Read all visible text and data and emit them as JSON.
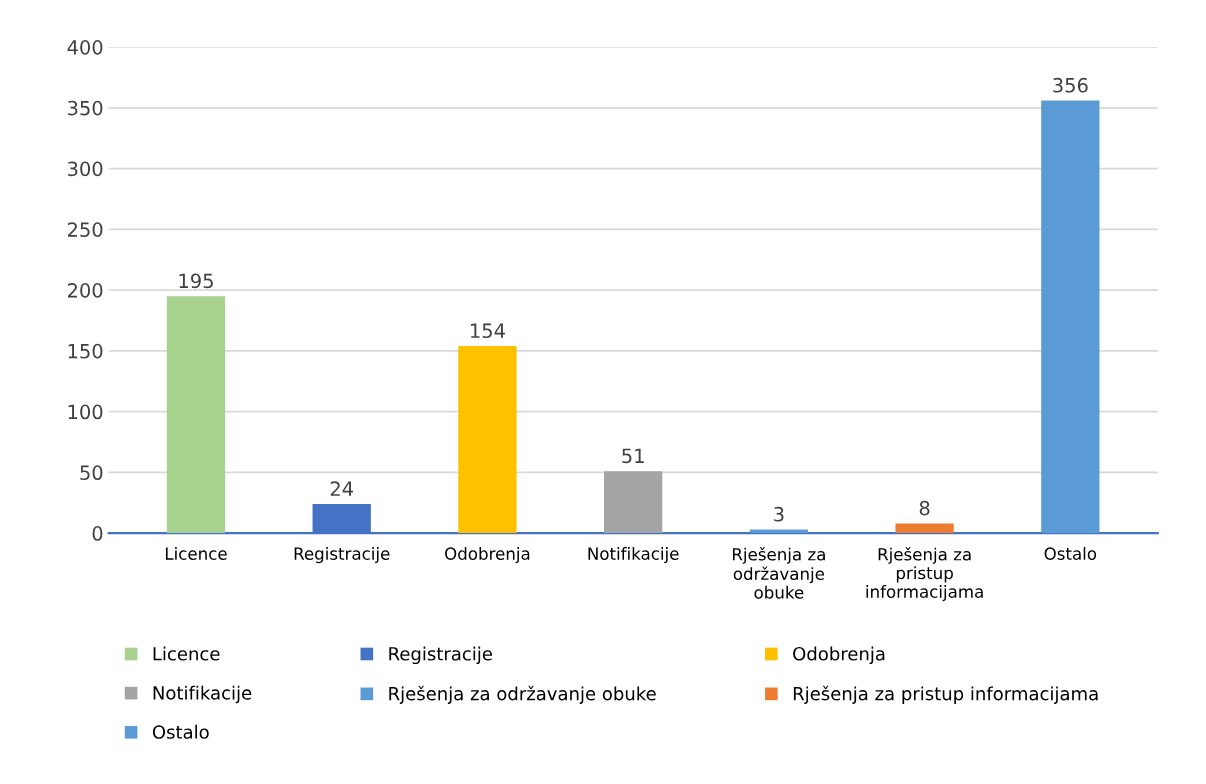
{
  "chart_data": {
    "type": "bar",
    "categories": [
      "Licence",
      "Registracije",
      "Odobrenja",
      "Notifikacije",
      "Rješenja za održavanje obuke",
      "Rješenja za pristup informacijama",
      "Ostalo"
    ],
    "series": [
      {
        "name": "Licence",
        "color": "#a9d18e",
        "values": [
          195,
          null,
          null,
          null,
          null,
          null,
          null
        ]
      },
      {
        "name": "Registracije",
        "color": "#4472c4",
        "values": [
          null,
          24,
          null,
          null,
          null,
          null,
          null
        ]
      },
      {
        "name": "Odobrenja",
        "color": "#ffc000",
        "values": [
          null,
          null,
          154,
          null,
          null,
          null,
          null
        ]
      },
      {
        "name": "Notifikacije",
        "color": "#a5a5a5",
        "values": [
          null,
          null,
          null,
          51,
          null,
          null,
          null
        ]
      },
      {
        "name": "Rješenja za održavanje obuke",
        "color": "#5b9bd5",
        "values": [
          null,
          null,
          null,
          null,
          3,
          null,
          null
        ]
      },
      {
        "name": "Rješenja za pristup informacijama",
        "color": "#ed7d31",
        "values": [
          null,
          null,
          null,
          null,
          null,
          8,
          null
        ]
      },
      {
        "name": "Ostalo",
        "color": "#5b9bd5",
        "values": [
          null,
          null,
          null,
          null,
          null,
          null,
          356
        ]
      }
    ],
    "ylim": [
      0,
      400
    ],
    "yticks": [
      0,
      50,
      100,
      150,
      200,
      250,
      300,
      350,
      400
    ],
    "grid": "y",
    "data_labels": true,
    "legend": "bottom"
  }
}
